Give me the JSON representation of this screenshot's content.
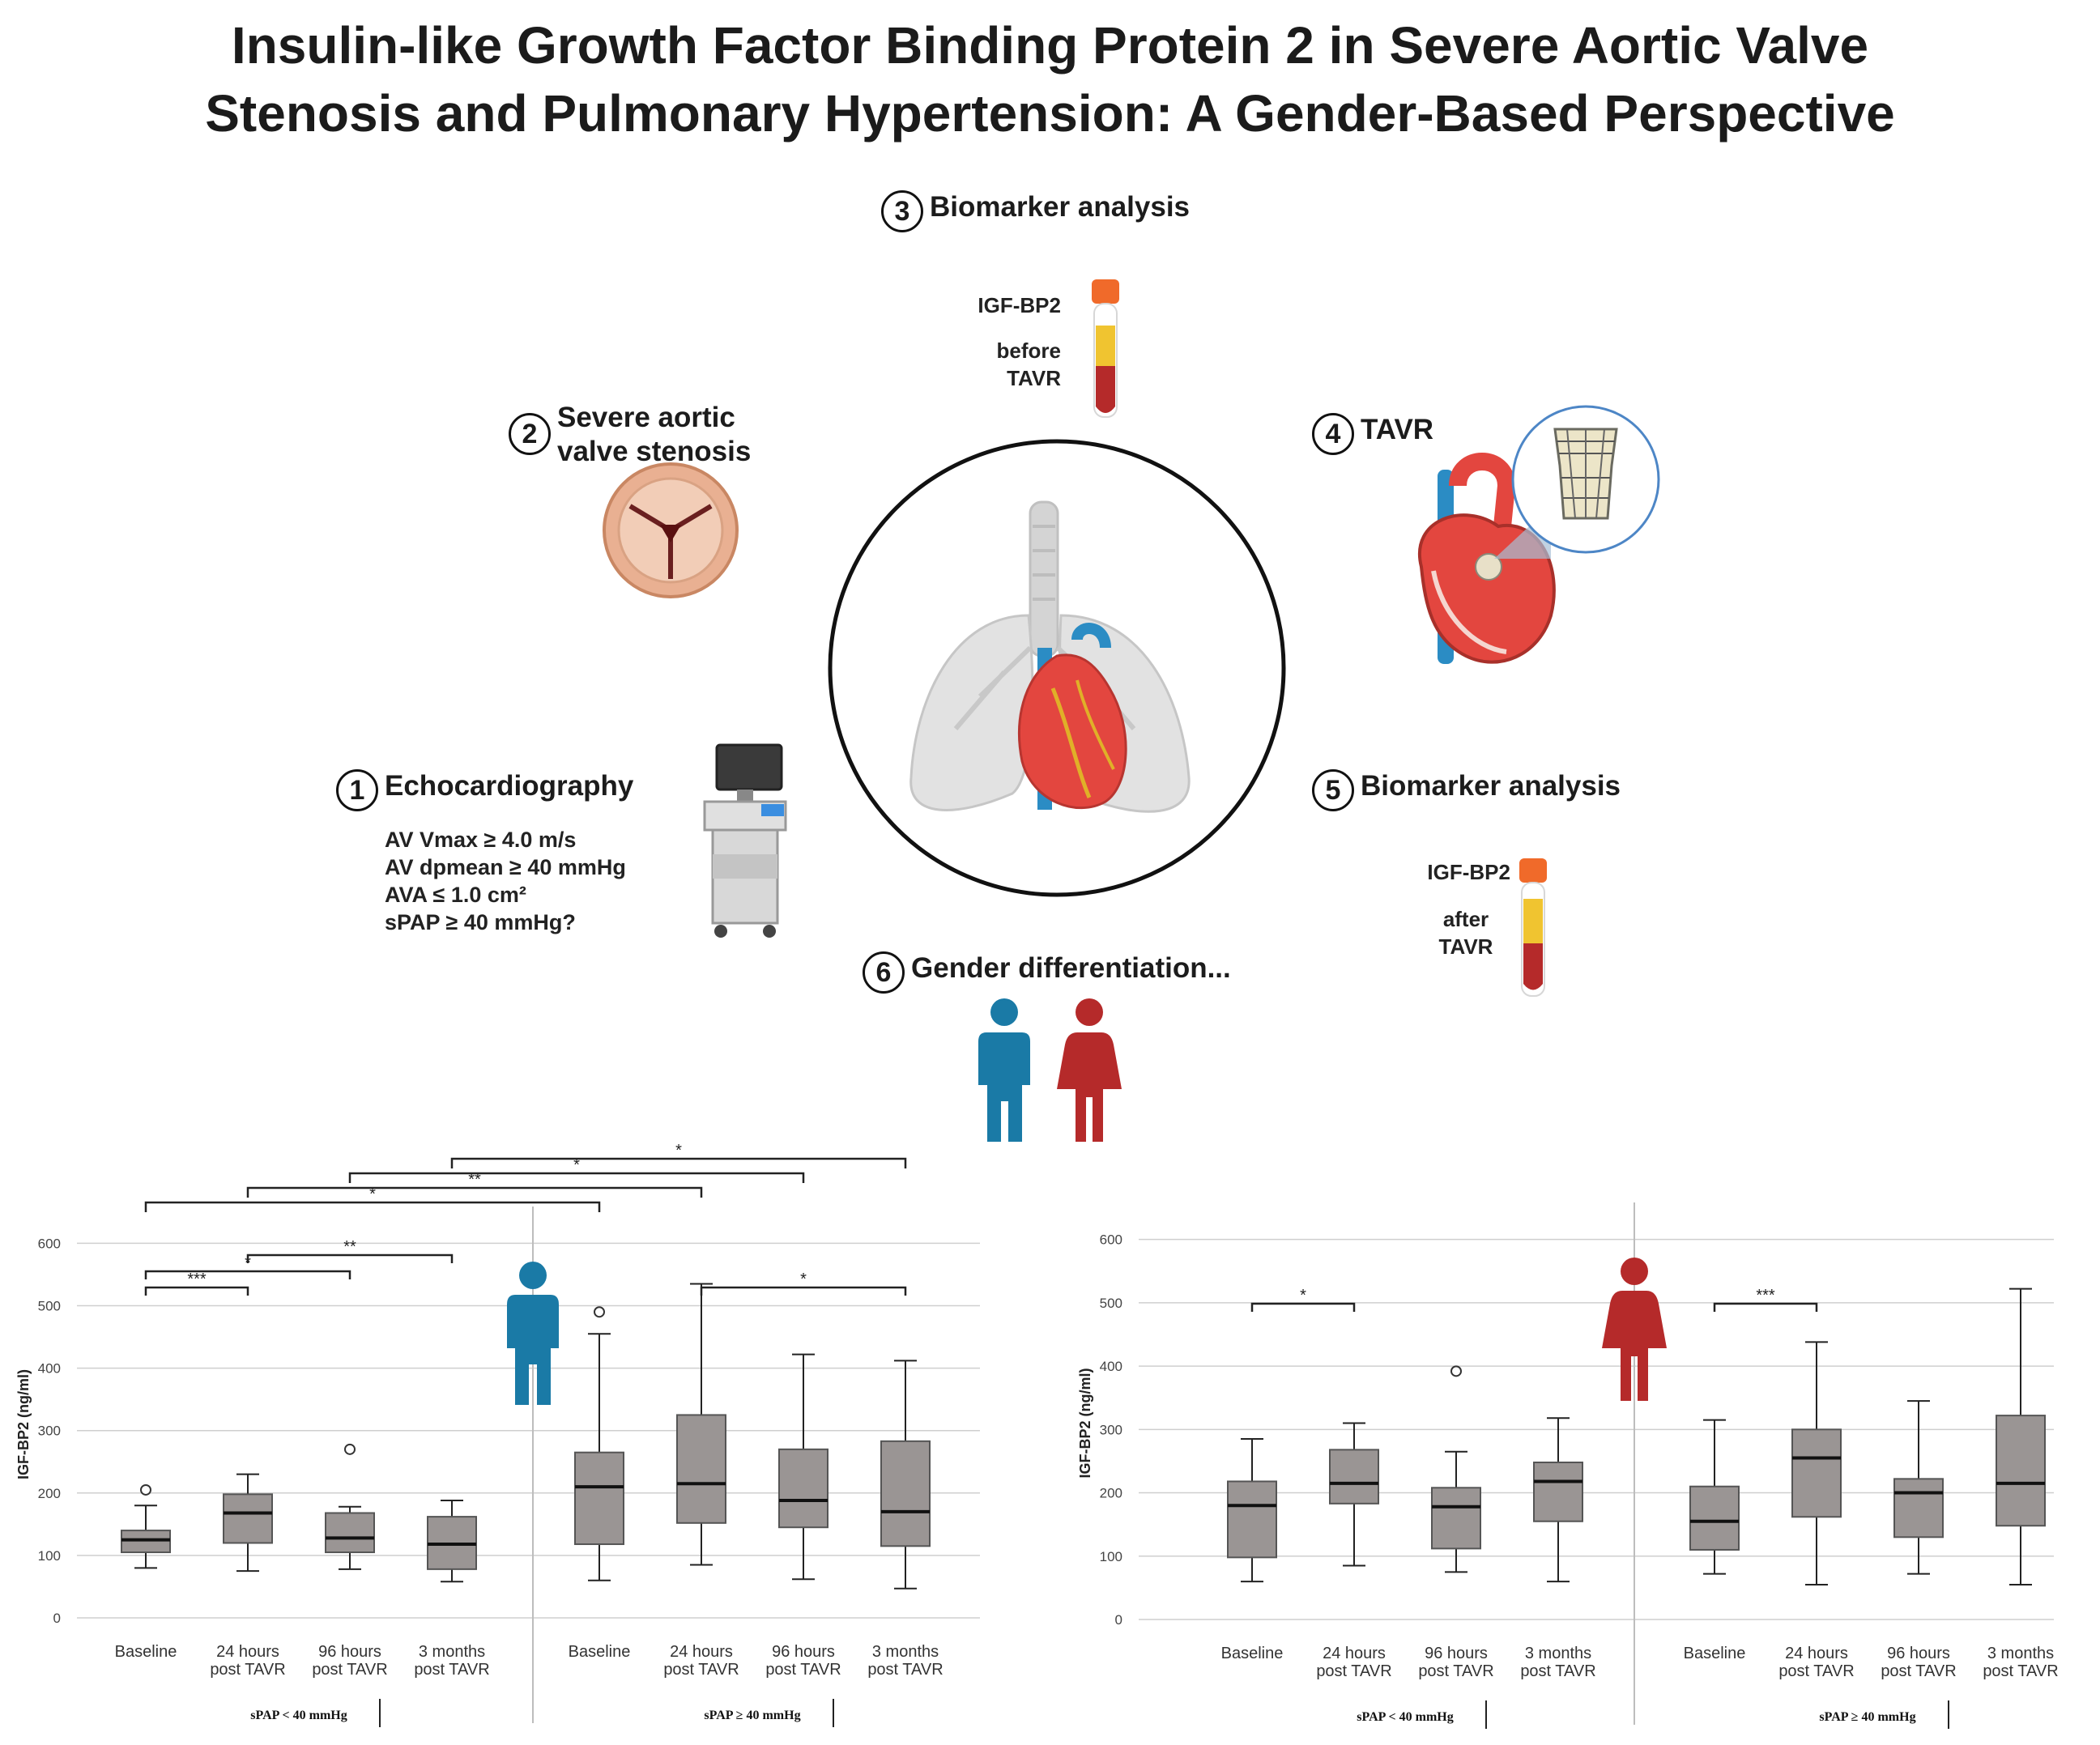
{
  "title": {
    "line1": "Insulin-like Growth Factor Binding Protein 2 in Severe Aortic Valve",
    "line2": "Stenosis and Pulmonary Hypertension: A Gender-Based Perspective"
  },
  "steps": [
    {
      "num": "1",
      "label": "Echocardiography"
    },
    {
      "num": "2",
      "label_line1": "Severe aortic",
      "label_line2": "valve stenosis"
    },
    {
      "num": "3",
      "label": "Biomarker analysis"
    },
    {
      "num": "4",
      "label": "TAVR"
    },
    {
      "num": "5",
      "label": "Biomarker analysis"
    },
    {
      "num": "6",
      "label": "Gender differentiation..."
    }
  ],
  "echo_criteria": [
    "AV Vmax ≥ 4.0 m/s",
    "AV dpmean ≥ 40 mmHg",
    "AVA ≤ 1.0 cm²",
    "sPAP ≥ 40 mmHg?"
  ],
  "tube_before": {
    "marker": "IGF-BP2",
    "line1": "before",
    "line2": "TAVR"
  },
  "tube_after": {
    "marker": "IGF-BP2",
    "line1": "after",
    "line2": "TAVR"
  },
  "colors": {
    "male": "#1a7aa6",
    "female": "#b52a2a",
    "box": "#9a9594",
    "grid": "#cfcfcf"
  },
  "chart_data": [
    {
      "type": "box",
      "panel": "male",
      "ylabel": "IGF-BP2 (ng/ml)",
      "ylim": [
        0,
        620
      ],
      "yticks": [
        "0",
        "100",
        "200",
        "300",
        "400",
        "500",
        "600"
      ],
      "groups": [
        "sPAP < 40 mmHg",
        "sPAP ≥ 40 mmHg"
      ],
      "categories_line1": [
        "Baseline",
        "24 hours",
        "96 hours",
        "3 months",
        "Baseline",
        "24 hours",
        "96 hours",
        "3 months"
      ],
      "categories_line2": [
        "",
        "post TAVR",
        "post TAVR",
        "post TAVR",
        "",
        "post TAVR",
        "post TAVR",
        "post TAVR"
      ],
      "boxes": [
        {
          "min": 80,
          "q1": 105,
          "median": 125,
          "q3": 140,
          "max": 180,
          "outliers": [
            205
          ]
        },
        {
          "min": 75,
          "q1": 120,
          "median": 168,
          "q3": 198,
          "max": 230,
          "outliers": []
        },
        {
          "min": 78,
          "q1": 105,
          "median": 128,
          "q3": 168,
          "max": 178,
          "outliers": [
            270
          ]
        },
        {
          "min": 58,
          "q1": 78,
          "median": 118,
          "q3": 162,
          "max": 188,
          "outliers": []
        },
        {
          "min": 60,
          "q1": 118,
          "median": 210,
          "q3": 265,
          "max": 455,
          "outliers": [
            490
          ]
        },
        {
          "min": 85,
          "q1": 152,
          "median": 215,
          "q3": 325,
          "max": 535,
          "outliers": []
        },
        {
          "min": 62,
          "q1": 145,
          "median": 188,
          "q3": 270,
          "max": 422,
          "outliers": []
        },
        {
          "min": 47,
          "q1": 115,
          "median": 170,
          "q3": 283,
          "max": 412,
          "outliers": []
        }
      ],
      "inner_brackets": [
        {
          "from": 0,
          "to": 1,
          "label": "***"
        },
        {
          "from": 0,
          "to": 2,
          "label": "*"
        },
        {
          "from": 1,
          "to": 3,
          "label": "**"
        },
        {
          "from": 5,
          "to": 7,
          "label": "*"
        }
      ],
      "outer_brackets": [
        {
          "from": 0,
          "to": 4,
          "label": "*"
        },
        {
          "from": 1,
          "to": 5,
          "label": "**"
        },
        {
          "from": 2,
          "to": 6,
          "label": "*"
        },
        {
          "from": 3,
          "to": 7,
          "label": "*"
        }
      ]
    },
    {
      "type": "box",
      "panel": "female",
      "ylabel": "IGF-BP2 (ng/ml)",
      "ylim": [
        0,
        620
      ],
      "yticks": [
        "0",
        "100",
        "200",
        "300",
        "400",
        "500",
        "600"
      ],
      "groups": [
        "sPAP < 40 mmHg",
        "sPAP ≥ 40 mmHg"
      ],
      "categories_line1": [
        "Baseline",
        "24 hours",
        "96 hours",
        "3 months",
        "Baseline",
        "24 hours",
        "96 hours",
        "3 months"
      ],
      "categories_line2": [
        "",
        "post TAVR",
        "post TAVR",
        "post TAVR",
        "",
        "post TAVR",
        "post TAVR",
        "post TAVR"
      ],
      "boxes": [
        {
          "min": 60,
          "q1": 98,
          "median": 180,
          "q3": 218,
          "max": 285,
          "outliers": []
        },
        {
          "min": 85,
          "q1": 183,
          "median": 215,
          "q3": 268,
          "max": 310,
          "outliers": []
        },
        {
          "min": 75,
          "q1": 112,
          "median": 178,
          "q3": 208,
          "max": 265,
          "outliers": [
            392
          ]
        },
        {
          "min": 60,
          "q1": 155,
          "median": 218,
          "q3": 248,
          "max": 318,
          "outliers": []
        },
        {
          "min": 72,
          "q1": 110,
          "median": 155,
          "q3": 210,
          "max": 315,
          "outliers": []
        },
        {
          "min": 55,
          "q1": 162,
          "median": 255,
          "q3": 300,
          "max": 438,
          "outliers": []
        },
        {
          "min": 72,
          "q1": 130,
          "median": 200,
          "q3": 222,
          "max": 345,
          "outliers": []
        },
        {
          "min": 55,
          "q1": 148,
          "median": 215,
          "q3": 322,
          "max": 522,
          "outliers": []
        }
      ],
      "inner_brackets": [
        {
          "from": 0,
          "to": 1,
          "label": "*"
        },
        {
          "from": 4,
          "to": 5,
          "label": "***"
        }
      ],
      "outer_brackets": []
    }
  ]
}
